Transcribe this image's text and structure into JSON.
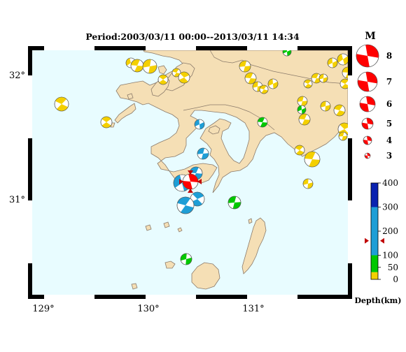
{
  "map": {
    "title": "Period:2003/03/11 00:00--2013/03/11 14:34",
    "lon_labels": [
      "129°",
      "130°",
      "131°"
    ],
    "lat_labels": [
      "32°",
      "31°"
    ],
    "colors": {
      "sea": "#e8fcff",
      "land": "#f5dfb5",
      "coast": "#8a7a6a"
    }
  },
  "legend": {
    "magnitude_header": "M",
    "magnitudes": [
      "8",
      "7",
      "6",
      "5",
      "4",
      "3"
    ],
    "depth_title": "Depth(km)",
    "depth_ticks": [
      "400",
      "300",
      "200",
      "100",
      "50",
      "0"
    ],
    "depth_bands": [
      {
        "from": 0,
        "to": 30,
        "color": "#f4d000"
      },
      {
        "from": 30,
        "to": 100,
        "color": "#00c800"
      },
      {
        "from": 100,
        "to": 300,
        "color": "#1e9ed6"
      },
      {
        "from": 300,
        "to": 400,
        "color": "#0a22b0"
      }
    ],
    "indicator_depth": 160,
    "mechanism_color": "#ff0000"
  }
}
